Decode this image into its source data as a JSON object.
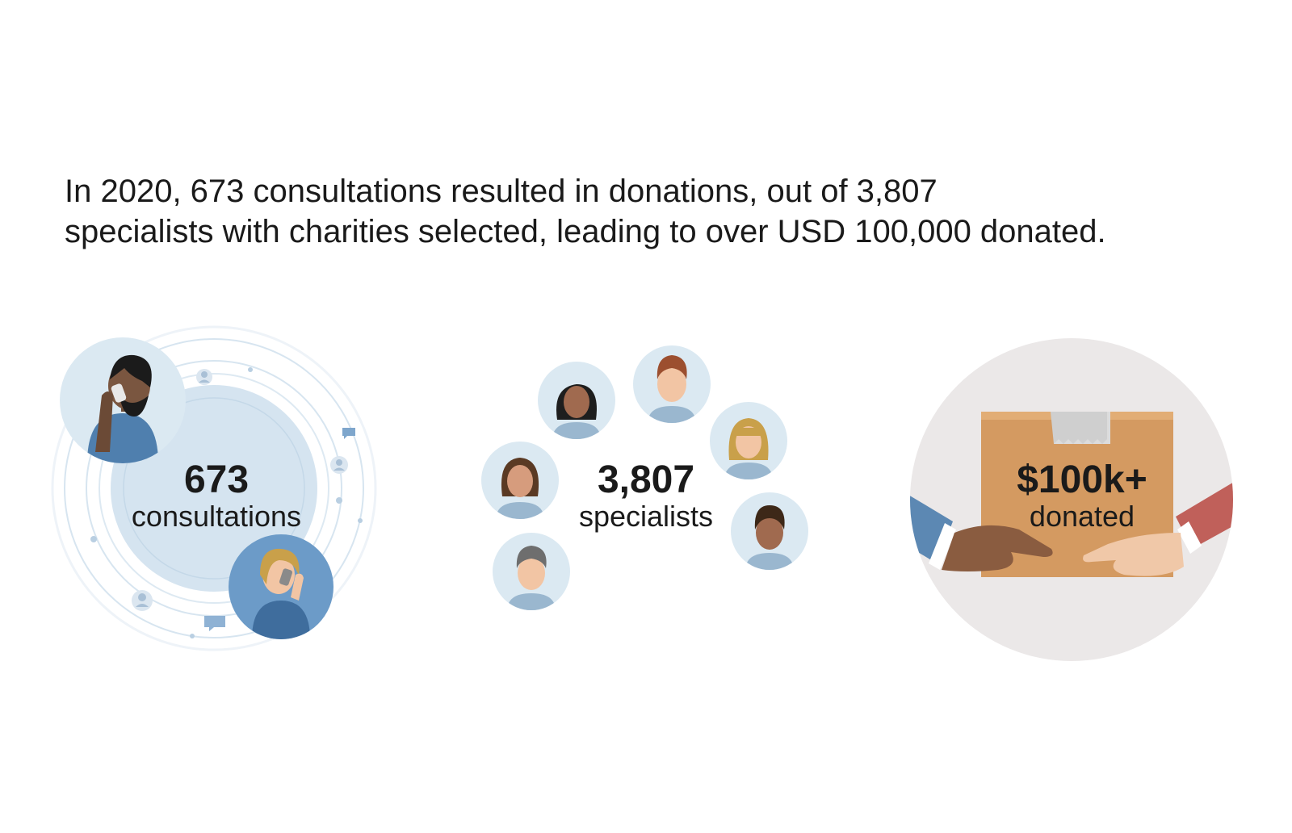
{
  "headline": {
    "line1": "In 2020, 673 consultations resulted in donations, out of 3,807",
    "line2": "specialists with charities selected, leading to over USD 100,000 donated."
  },
  "stats": [
    {
      "value": "673",
      "label": "consultations",
      "icon": "phone-callers-illustration"
    },
    {
      "value": "3,807",
      "label": "specialists",
      "icon": "specialist-avatars-illustration"
    },
    {
      "value": "$100k+",
      "label": "donated",
      "icon": "donation-box-hands-illustration"
    }
  ],
  "colors": {
    "text": "#1a1a1a",
    "pale_blue": "#dbe9f2",
    "mid_blue": "#c5d9e8",
    "shirt_blue": "#4f7fae",
    "box": "#d49a61",
    "grey_circle": "#ebe8e8"
  }
}
